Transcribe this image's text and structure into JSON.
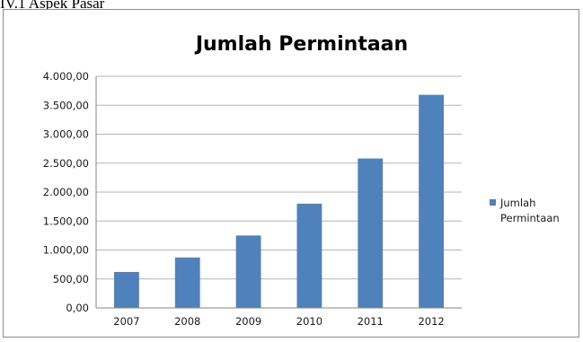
{
  "document": {
    "heading": "IV.1 Aspek Pasar"
  },
  "chart_data": {
    "type": "bar",
    "title": "Jumlah Permintaan",
    "xlabel": "",
    "ylabel": "",
    "categories": [
      "2007",
      "2008",
      "2009",
      "2010",
      "2011",
      "2012"
    ],
    "series": [
      {
        "name": "Jumlah Permintaan",
        "values": [
          620,
          870,
          1250,
          1800,
          2580,
          3680
        ],
        "color": "#4f81bd"
      }
    ],
    "ylim": [
      0,
      4000
    ],
    "y_ticks": [
      0,
      500,
      1000,
      1500,
      2000,
      2500,
      3000,
      3500,
      4000
    ],
    "y_tick_labels": [
      "0,00",
      "500,00",
      "1.000,00",
      "1.500,00",
      "2.000,00",
      "2.500,00",
      "3.000,00",
      "3.500,00",
      "4.000,00"
    ],
    "legend_lines": [
      "Jumlah",
      "Permintaan"
    ],
    "grid": true,
    "grid_color": "#b5b5b5",
    "legend_position": "right"
  }
}
